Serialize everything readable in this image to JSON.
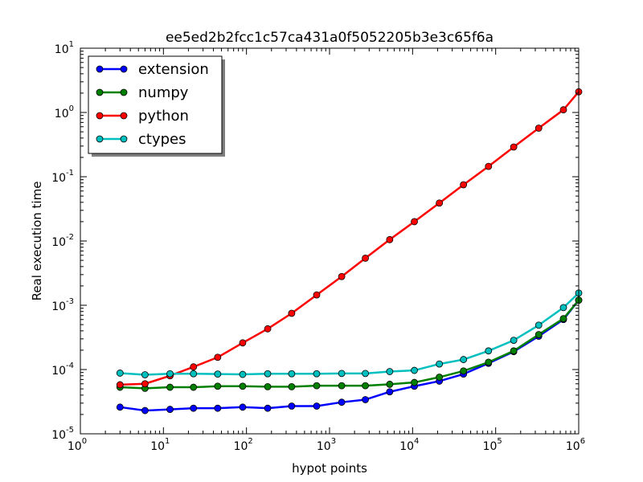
{
  "chart_data": {
    "type": "line",
    "title": "ee5ed2b2fcc1c57ca431a0f5052205b3e3c65f6a",
    "xlabel": "hypot points",
    "ylabel": "Real execution time",
    "xscale": "log",
    "yscale": "log",
    "xlim": [
      1,
      1000000
    ],
    "ylim": [
      1e-05,
      10
    ],
    "grid": false,
    "legend_position": "top-left",
    "x_ticks": [
      {
        "base": "10",
        "exp": "0"
      },
      {
        "base": "10",
        "exp": "1"
      },
      {
        "base": "10",
        "exp": "2"
      },
      {
        "base": "10",
        "exp": "3"
      },
      {
        "base": "10",
        "exp": "4"
      },
      {
        "base": "10",
        "exp": "5"
      },
      {
        "base": "10",
        "exp": "6"
      }
    ],
    "y_ticks": [
      {
        "base": "10",
        "exp": "-5"
      },
      {
        "base": "10",
        "exp": "-4"
      },
      {
        "base": "10",
        "exp": "-3"
      },
      {
        "base": "10",
        "exp": "-2"
      },
      {
        "base": "10",
        "exp": "-1"
      },
      {
        "base": "10",
        "exp": "0"
      },
      {
        "base": "10",
        "exp": "1"
      }
    ],
    "x": [
      3,
      6,
      12,
      23,
      45,
      90,
      180,
      350,
      700,
      1400,
      2700,
      5300,
      10500,
      21000,
      41000,
      82000,
      165000,
      330000,
      655000,
      1000000
    ],
    "series": [
      {
        "name": "extension",
        "color": "#0000ff",
        "values": [
          2.6e-05,
          2.3e-05,
          2.4e-05,
          2.5e-05,
          2.5e-05,
          2.6e-05,
          2.5e-05,
          2.7e-05,
          2.7e-05,
          3.1e-05,
          3.4e-05,
          4.5e-05,
          5.5e-05,
          6.6e-05,
          8.5e-05,
          0.000125,
          0.00019,
          0.00033,
          0.0006,
          0.0012
        ]
      },
      {
        "name": "numpy",
        "color": "#008000",
        "values": [
          5.3e-05,
          5.1e-05,
          5.3e-05,
          5.3e-05,
          5.5e-05,
          5.5e-05,
          5.4e-05,
          5.4e-05,
          5.6e-05,
          5.6e-05,
          5.6e-05,
          5.9e-05,
          6.3e-05,
          7.6e-05,
          9.5e-05,
          0.00013,
          0.000195,
          0.00035,
          0.00062,
          0.0012
        ]
      },
      {
        "name": "python",
        "color": "#ff0000",
        "values": [
          5.8e-05,
          6e-05,
          8e-05,
          0.00011,
          0.000155,
          0.00026,
          0.00043,
          0.00075,
          0.00145,
          0.0028,
          0.0054,
          0.0105,
          0.02,
          0.039,
          0.075,
          0.145,
          0.29,
          0.57,
          1.1,
          2.1
        ]
      },
      {
        "name": "ctypes",
        "color": "#00bfbf",
        "values": [
          8.8e-05,
          8.3e-05,
          8.6e-05,
          8.6e-05,
          8.5e-05,
          8.4e-05,
          8.6e-05,
          8.6e-05,
          8.6e-05,
          8.7e-05,
          8.7e-05,
          9.3e-05,
          9.7e-05,
          0.000122,
          0.000143,
          0.000195,
          0.000285,
          0.00049,
          0.00092,
          0.00155
        ]
      }
    ]
  }
}
